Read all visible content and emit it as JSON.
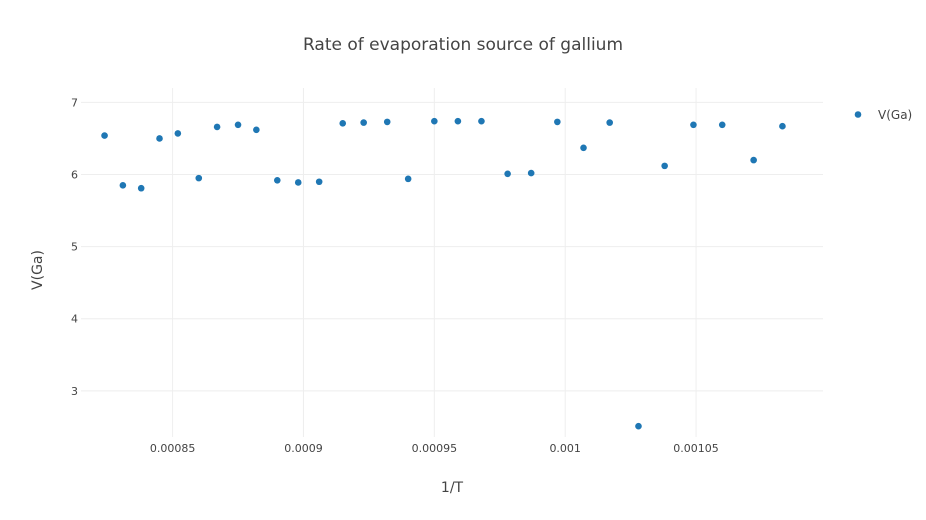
{
  "chart_data": {
    "type": "scatter",
    "title": "Rate of evaporation source of gallium",
    "xlabel": "1/T",
    "ylabel": "V(Ga)",
    "xlim": [
      0.000815,
      0.0010985
    ],
    "ylim": [
      2.36,
      7.2
    ],
    "xticks": [
      0.00085,
      0.0009,
      0.00095,
      0.001,
      0.00105
    ],
    "xtick_labels": [
      "0.00085",
      "0.0009",
      "0.00095",
      "0.001",
      "0.00105"
    ],
    "yticks": [
      3,
      4,
      5,
      6,
      7
    ],
    "ytick_labels": [
      "3",
      "4",
      "5",
      "6",
      "7"
    ],
    "grid": true,
    "legend_position": "top-right",
    "marker_color": "#1f77b4",
    "series": [
      {
        "name": "V(Ga)",
        "x": [
          0.000824,
          0.000831,
          0.000838,
          0.000845,
          0.000852,
          0.00086,
          0.000867,
          0.000875,
          0.000882,
          0.00089,
          0.000898,
          0.000906,
          0.000915,
          0.000923,
          0.000932,
          0.00094,
          0.00095,
          0.000959,
          0.000968,
          0.000978,
          0.000987,
          0.000997,
          0.001007,
          0.001017,
          0.001028,
          0.001038,
          0.001049,
          0.00106,
          0.001072,
          0.001083
        ],
        "y": [
          6.54,
          5.85,
          5.81,
          6.5,
          6.57,
          5.95,
          6.66,
          6.69,
          6.62,
          5.92,
          5.89,
          5.9,
          6.71,
          6.72,
          6.73,
          5.94,
          6.74,
          6.74,
          6.74,
          6.01,
          6.02,
          6.73,
          6.37,
          6.72,
          2.51,
          6.12,
          6.69,
          6.69,
          6.2,
          6.67
        ]
      }
    ]
  }
}
